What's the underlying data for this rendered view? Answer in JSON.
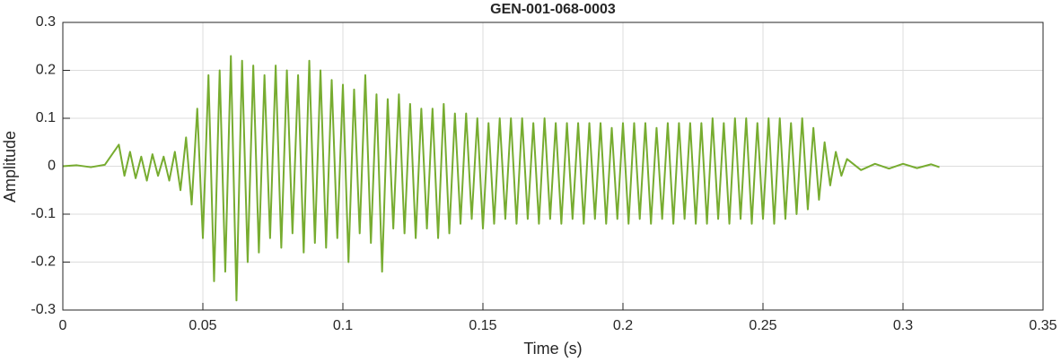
{
  "chart_data": {
    "type": "line",
    "title": "GEN-001-068-0003",
    "xlabel": "Time (s)",
    "ylabel": "Amplitude",
    "color": "#77ac30",
    "grid": true,
    "xlim": [
      0,
      0.35
    ],
    "xticks": [
      0,
      0.05,
      0.1,
      0.15,
      0.2,
      0.25,
      0.3,
      0.35
    ],
    "ylim": [
      -0.3,
      0.3
    ],
    "yticks": [
      -0.3,
      -0.2,
      -0.1,
      0,
      0.1,
      0.2,
      0.3
    ],
    "x": [
      0,
      0.005,
      0.01,
      0.015,
      0.02,
      0.022,
      0.024,
      0.026,
      0.028,
      0.03,
      0.032,
      0.034,
      0.036,
      0.038,
      0.04,
      0.042,
      0.044,
      0.046,
      0.048,
      0.05,
      0.052,
      0.054,
      0.056,
      0.058,
      0.06,
      0.062,
      0.064,
      0.066,
      0.068,
      0.07,
      0.072,
      0.074,
      0.076,
      0.078,
      0.08,
      0.082,
      0.084,
      0.086,
      0.088,
      0.09,
      0.092,
      0.094,
      0.096,
      0.098,
      0.1,
      0.102,
      0.104,
      0.106,
      0.108,
      0.11,
      0.112,
      0.114,
      0.116,
      0.118,
      0.12,
      0.122,
      0.124,
      0.126,
      0.128,
      0.13,
      0.132,
      0.134,
      0.136,
      0.138,
      0.14,
      0.142,
      0.144,
      0.146,
      0.148,
      0.15,
      0.152,
      0.154,
      0.156,
      0.158,
      0.16,
      0.162,
      0.164,
      0.166,
      0.168,
      0.17,
      0.172,
      0.174,
      0.176,
      0.178,
      0.18,
      0.182,
      0.184,
      0.186,
      0.188,
      0.19,
      0.192,
      0.194,
      0.196,
      0.198,
      0.2,
      0.202,
      0.204,
      0.206,
      0.208,
      0.21,
      0.212,
      0.214,
      0.216,
      0.218,
      0.22,
      0.222,
      0.224,
      0.226,
      0.228,
      0.23,
      0.232,
      0.234,
      0.236,
      0.238,
      0.24,
      0.242,
      0.244,
      0.246,
      0.248,
      0.25,
      0.252,
      0.254,
      0.256,
      0.258,
      0.26,
      0.262,
      0.264,
      0.266,
      0.268,
      0.27,
      0.272,
      0.274,
      0.276,
      0.278,
      0.28,
      0.285,
      0.29,
      0.295,
      0.3,
      0.305,
      0.31,
      0.313
    ],
    "values": [
      0,
      0.002,
      -0.002,
      0.003,
      0.045,
      -0.02,
      0.03,
      -0.025,
      0.02,
      -0.03,
      0.025,
      -0.02,
      0.02,
      -0.03,
      0.03,
      -0.05,
      0.06,
      -0.08,
      0.12,
      -0.15,
      0.19,
      -0.24,
      0.2,
      -0.22,
      0.23,
      -0.28,
      0.22,
      -0.2,
      0.21,
      -0.18,
      0.19,
      -0.15,
      0.21,
      -0.17,
      0.2,
      -0.14,
      0.19,
      -0.18,
      0.22,
      -0.16,
      0.2,
      -0.17,
      0.18,
      -0.15,
      0.17,
      -0.2,
      0.16,
      -0.14,
      0.19,
      -0.16,
      0.15,
      -0.22,
      0.14,
      -0.13,
      0.15,
      -0.14,
      0.13,
      -0.15,
      0.12,
      -0.13,
      0.12,
      -0.15,
      0.13,
      -0.14,
      0.11,
      -0.12,
      0.11,
      -0.11,
      0.1,
      -0.13,
      0.09,
      -0.12,
      0.1,
      -0.11,
      0.1,
      -0.12,
      0.1,
      -0.11,
      0.09,
      -0.12,
      0.1,
      -0.11,
      0.09,
      -0.12,
      0.09,
      -0.11,
      0.09,
      -0.12,
      0.09,
      -0.11,
      0.09,
      -0.12,
      0.08,
      -0.11,
      0.09,
      -0.12,
      0.09,
      -0.11,
      0.09,
      -0.12,
      0.08,
      -0.11,
      0.09,
      -0.12,
      0.09,
      -0.11,
      0.09,
      -0.12,
      0.09,
      -0.12,
      0.1,
      -0.11,
      0.09,
      -0.12,
      0.1,
      -0.11,
      0.1,
      -0.12,
      0.09,
      -0.11,
      0.1,
      -0.12,
      0.1,
      -0.11,
      0.09,
      -0.1,
      0.1,
      -0.09,
      0.08,
      -0.07,
      0.05,
      -0.04,
      0.03,
      -0.02,
      0.015,
      -0.008,
      0.005,
      -0.005,
      0.005,
      -0.004,
      0.004,
      -0.002
    ]
  }
}
